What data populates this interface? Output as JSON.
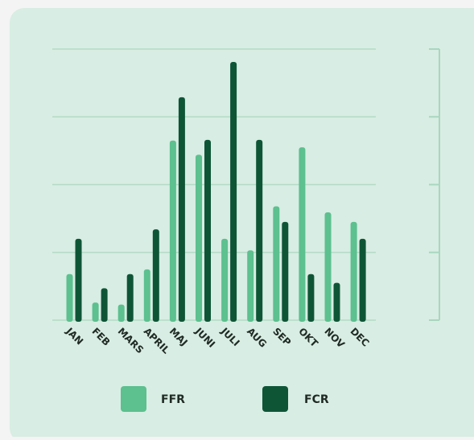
{
  "chart_data": {
    "type": "bar",
    "categories": [
      "JAN",
      "FEB",
      "MARS",
      "APRIL",
      "MAJ",
      "JUNI",
      "JULI",
      "AUG",
      "SEP",
      "OKT",
      "NOV",
      "DEC"
    ],
    "series": [
      {
        "name": "FFR",
        "color": "#5cc08f",
        "values": [
          0.68,
          0.26,
          0.23,
          0.75,
          2.65,
          2.44,
          1.2,
          1.03,
          1.68,
          2.55,
          1.59,
          1.45
        ]
      },
      {
        "name": "FCR",
        "color": "#0e5536",
        "values": [
          1.2,
          0.47,
          0.68,
          1.34,
          3.29,
          2.66,
          3.81,
          2.66,
          1.45,
          0.68,
          0.55,
          1.2
        ]
      }
    ],
    "ylim": [
      0,
      4
    ],
    "yticks": [
      0,
      1,
      2,
      3,
      4
    ],
    "grid": true
  }
}
